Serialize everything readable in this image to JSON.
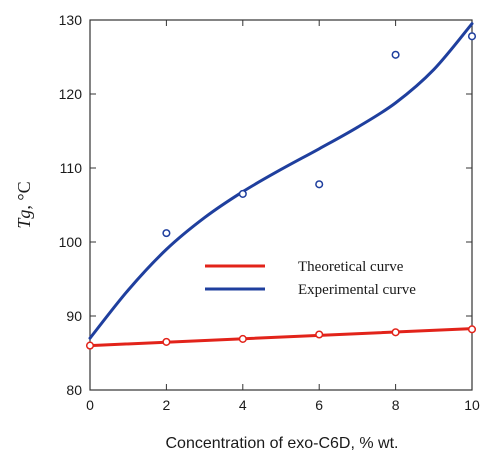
{
  "chart_data": {
    "type": "line",
    "xlabel": "Concentration of exo-C6D, % wt.",
    "ylabel_main": "Tg",
    "ylabel_unit": ", °C",
    "xlim": [
      0,
      10
    ],
    "ylim": [
      80,
      130
    ],
    "xticks": [
      0,
      2,
      4,
      6,
      8,
      10
    ],
    "yticks": [
      80,
      90,
      100,
      110,
      120,
      130
    ],
    "grid": false,
    "legend_position": "center-right",
    "series": [
      {
        "name": "Theoretical curve",
        "color": "#e2231a",
        "points": [
          [
            0,
            86.0
          ],
          [
            2,
            86.5
          ],
          [
            4,
            86.9
          ],
          [
            6,
            87.5
          ],
          [
            8,
            87.8
          ],
          [
            10,
            88.2
          ]
        ],
        "fit": [
          [
            0,
            86.0
          ],
          [
            10,
            88.3
          ]
        ]
      },
      {
        "name": "Experimental curve",
        "color": "#1f3f9e",
        "points": [
          [
            2,
            101.2
          ],
          [
            4,
            106.5
          ],
          [
            6,
            107.8
          ],
          [
            8,
            125.3
          ],
          [
            10,
            127.8
          ]
        ],
        "fit": [
          [
            0,
            87.0
          ],
          [
            1,
            93.5
          ],
          [
            2,
            99.0
          ],
          [
            3,
            103.3
          ],
          [
            4,
            106.8
          ],
          [
            5,
            109.8
          ],
          [
            6,
            112.6
          ],
          [
            7,
            115.5
          ],
          [
            8,
            118.8
          ],
          [
            9,
            123.3
          ],
          [
            10,
            129.5
          ]
        ]
      }
    ]
  }
}
